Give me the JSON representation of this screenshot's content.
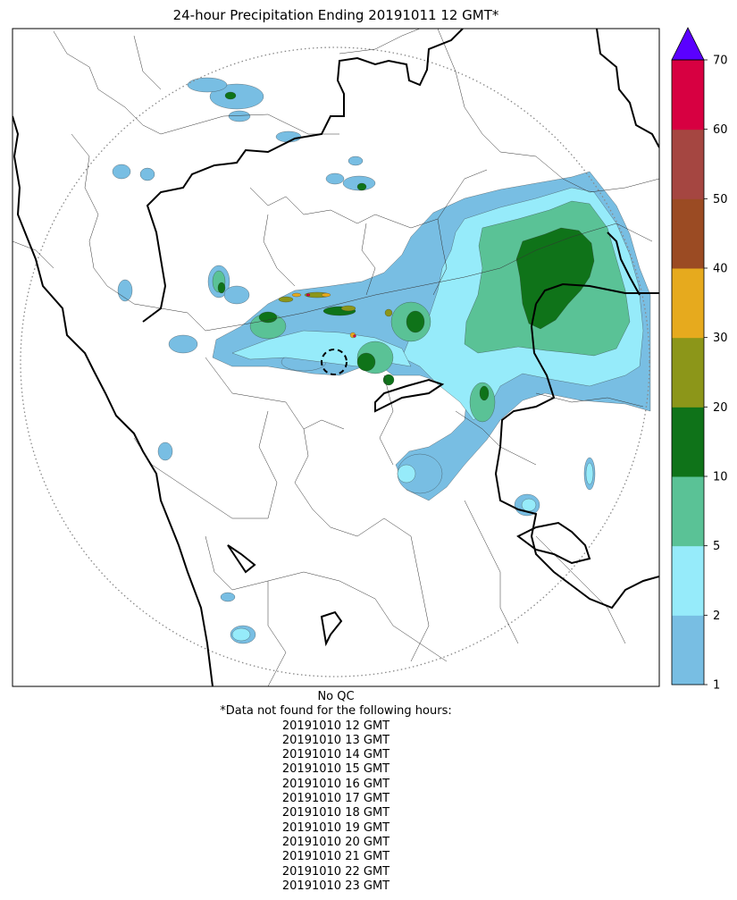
{
  "title": "24-hour Precipitation Ending 20191011 12 GMT*",
  "qc_note": "No QC",
  "missing_header": "*Data not found for the following hours:",
  "missing_hours": [
    "20191010 12 GMT",
    "20191010 13 GMT",
    "20191010 14 GMT",
    "20191010 15 GMT",
    "20191010 16 GMT",
    "20191010 17 GMT",
    "20191010 18 GMT",
    "20191010 19 GMT",
    "20191010 20 GMT",
    "20191010 21 GMT",
    "20191010 22 GMT",
    "20191010 23 GMT"
  ],
  "colorbar": {
    "levels": [
      "1",
      "2",
      "5",
      "10",
      "20",
      "30",
      "40",
      "50",
      "60",
      "70"
    ],
    "colors": [
      "#78bee3",
      "#96ebfa",
      "#5ac296",
      "#0f7319",
      "#8c9619",
      "#e6aa1e",
      "#9b4b23",
      "#a54641",
      "#d70041"
    ],
    "extend_color": "#5a00ff"
  },
  "map": {
    "colors": {
      "light_blue": "#78bee3",
      "cyan": "#96ebfa",
      "light_green": "#5ac296",
      "dark_green": "#0f7319",
      "olive": "#8c9619",
      "orange": "#e6aa1e",
      "red": "#d70041",
      "boundary": "#000000",
      "range_ring": "#888888"
    }
  }
}
